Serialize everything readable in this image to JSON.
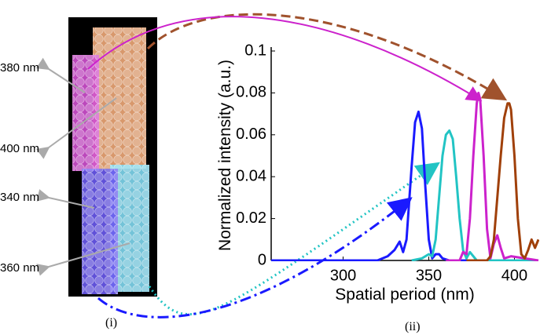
{
  "chart_data": {
    "type": "line",
    "xlabel": "Spatial period (nm)",
    "ylabel": "Normalized intensity (a.u.)",
    "xlim": [
      258,
      414
    ],
    "ylim": [
      0,
      0.1
    ],
    "xticks": [
      300,
      350,
      400
    ],
    "yticks": [
      0,
      0.02,
      0.04,
      0.06,
      0.08,
      0.1
    ],
    "series": [
      {
        "color": "#1a1aff",
        "x": [
          258,
          320,
          326,
          330,
          333,
          335,
          337,
          340,
          342,
          344,
          346,
          348,
          350,
          352,
          354,
          356,
          358,
          362,
          414
        ],
        "values": [
          0,
          0,
          0.002,
          0.005,
          0.009,
          0.004,
          0.01,
          0.045,
          0.066,
          0.071,
          0.063,
          0.035,
          0.01,
          0.001,
          0.003,
          0.003,
          0.001,
          0,
          0
        ]
      },
      {
        "color": "#22c4c4",
        "x": [
          340,
          346,
          350,
          352,
          354,
          356,
          358,
          360,
          362,
          364,
          366,
          368,
          370,
          372,
          374,
          378,
          414
        ],
        "values": [
          0,
          0.001,
          0.003,
          0.002,
          0.01,
          0.03,
          0.05,
          0.06,
          0.062,
          0.058,
          0.04,
          0.02,
          0.005,
          0.001,
          0.004,
          0,
          0
        ]
      },
      {
        "color": "#cc22cc",
        "x": [
          360,
          368,
          370,
          372,
          374,
          376,
          378,
          379,
          380,
          382,
          384,
          386,
          388,
          390,
          392,
          394,
          398,
          414
        ],
        "values": [
          0,
          0,
          0.004,
          0.003,
          0.02,
          0.05,
          0.075,
          0.08,
          0.077,
          0.05,
          0.015,
          0.001,
          0.008,
          0.012,
          0.006,
          0.001,
          0.002,
          0
        ]
      },
      {
        "color": "#a0400a",
        "x": [
          372,
          384,
          386,
          388,
          390,
          392,
          394,
          396,
          397,
          398,
          400,
          402,
          404,
          406,
          408,
          410,
          412,
          414
        ],
        "values": [
          0,
          0,
          0.002,
          0.01,
          0.03,
          0.05,
          0.068,
          0.075,
          0.075,
          0.072,
          0.05,
          0.02,
          0.003,
          0.001,
          0.005,
          0.01,
          0.006,
          0.01
        ]
      }
    ]
  },
  "figure": {
    "annotations": [
      "380 nm",
      "400 nm",
      "340 nm",
      "360 nm"
    ],
    "panel_labels": [
      "(i)",
      "(ii)"
    ]
  }
}
